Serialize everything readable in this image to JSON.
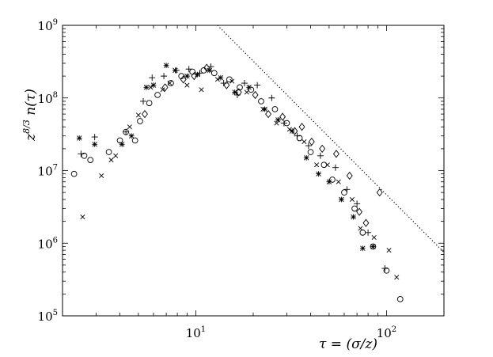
{
  "chart_data": {
    "type": "scatter",
    "title": "",
    "xlabel": "τ = (σ/z)",
    "ylabel": "z^{8/3} n(τ)",
    "x_scale": "log",
    "y_scale": "log",
    "xlim": [
      2.0,
      200
    ],
    "ylim": [
      100000,
      1000000000
    ],
    "grid": false,
    "x_ticks": [
      {
        "value": 10,
        "base": "10",
        "exp": "1"
      },
      {
        "value": 100,
        "base": "10",
        "exp": "2"
      }
    ],
    "y_ticks": [
      {
        "value": 100000,
        "base": "10",
        "exp": "5"
      },
      {
        "value": 1000000,
        "base": "10",
        "exp": "6"
      },
      {
        "value": 10000000,
        "base": "10",
        "exp": "7"
      },
      {
        "value": 100000000,
        "base": "10",
        "exp": "8"
      },
      {
        "value": 1000000000,
        "base": "10",
        "exp": "9"
      }
    ],
    "reference_line": {
      "style": "dotted",
      "points": [
        [
          13,
          1000000000
        ],
        [
          200,
          750000
        ]
      ]
    },
    "series": [
      {
        "marker": "circle",
        "points": [
          [
            2.3,
            9000000.0
          ],
          [
            2.6,
            16000000.0
          ],
          [
            2.8,
            14000000.0
          ],
          [
            3.5,
            18000000.0
          ],
          [
            4.0,
            26000000.0
          ],
          [
            4.3,
            34000000.0
          ],
          [
            4.8,
            26000000.0
          ],
          [
            5.1,
            48000000.0
          ],
          [
            5.7,
            85000000.0
          ],
          [
            6.3,
            110000000.0
          ],
          [
            7.4,
            160000000.0
          ],
          [
            8.4,
            200000000.0
          ],
          [
            9.6,
            230000000.0
          ],
          [
            11.0,
            240000000.0
          ],
          [
            12.5,
            220000000.0
          ],
          [
            15.0,
            180000000.0
          ],
          [
            17.0,
            140000000.0
          ],
          [
            19.5,
            130000000.0
          ],
          [
            22.0,
            90000000.0
          ],
          [
            26.0,
            70000000.0
          ],
          [
            30.0,
            45000000.0
          ],
          [
            35.0,
            28000000.0
          ],
          [
            40.0,
            18000000.0
          ],
          [
            47.0,
            12000000.0
          ],
          [
            52.0,
            7500000.0
          ],
          [
            60.0,
            5000000.0
          ],
          [
            68.0,
            3000000.0
          ],
          [
            75.0,
            1400000.0
          ],
          [
            85.0,
            900000.0
          ],
          [
            100.0,
            420000.0
          ],
          [
            118.0,
            170000.0
          ]
        ]
      },
      {
        "marker": "asterisk",
        "points": [
          [
            2.45,
            28000000.0
          ],
          [
            2.95,
            23000000.0
          ],
          [
            4.1,
            23000000.0
          ],
          [
            4.6,
            30000000.0
          ],
          [
            5.5,
            140000000.0
          ],
          [
            6.0,
            150000000.0
          ],
          [
            7.0,
            280000000.0
          ],
          [
            7.8,
            240000000.0
          ],
          [
            9.0,
            200000000.0
          ],
          [
            10.2,
            210000000.0
          ],
          [
            11.8,
            240000000.0
          ],
          [
            13.5,
            190000000.0
          ],
          [
            16.0,
            120000000.0
          ],
          [
            19.0,
            140000000.0
          ],
          [
            23.0,
            70000000.0
          ],
          [
            27.0,
            50000000.0
          ],
          [
            32.0,
            35000000.0
          ],
          [
            38.0,
            15000000.0
          ],
          [
            44.0,
            9000000.0
          ],
          [
            50.0,
            7000000.0
          ],
          [
            58.0,
            4000000.0
          ],
          [
            67.0,
            2300000.0
          ],
          [
            75.0,
            850000.0
          ],
          [
            85.0,
            900000.0
          ]
        ]
      },
      {
        "marker": "plus",
        "points": [
          [
            2.5,
            17000000.0
          ],
          [
            2.95,
            29000000.0
          ],
          [
            4.3,
            34000000.0
          ],
          [
            5.3,
            90000000.0
          ],
          [
            5.9,
            190000000.0
          ],
          [
            6.8,
            200000000.0
          ],
          [
            7.9,
            240000000.0
          ],
          [
            9.2,
            250000000.0
          ],
          [
            10.5,
            220000000.0
          ],
          [
            12.0,
            270000000.0
          ],
          [
            14.0,
            160000000.0
          ],
          [
            16.5,
            110000000.0
          ],
          [
            18.0,
            160000000.0
          ],
          [
            21.0,
            150000000.0
          ],
          [
            25.0,
            100000000.0
          ],
          [
            29.0,
            45000000.0
          ],
          [
            34.0,
            30000000.0
          ],
          [
            39.0,
            22000000.0
          ],
          [
            45.0,
            16000000.0
          ],
          [
            54.0,
            11000000.0
          ],
          [
            62.0,
            5500000.0
          ],
          [
            70.0,
            3500000.0
          ],
          [
            80.0,
            1400000.0
          ],
          [
            98.0,
            450000.0
          ]
        ]
      },
      {
        "marker": "x",
        "points": [
          [
            2.55,
            2300000.0
          ],
          [
            3.2,
            8500000.0
          ],
          [
            3.6,
            14000000.0
          ],
          [
            3.8,
            16000000.0
          ],
          [
            4.5,
            40000000.0
          ],
          [
            5.0,
            58000000.0
          ],
          [
            5.8,
            140000000.0
          ],
          [
            6.7,
            130000000.0
          ],
          [
            7.3,
            160000000.0
          ],
          [
            9.0,
            150000000.0
          ],
          [
            10.7,
            130000000.0
          ],
          [
            13.0,
            180000000.0
          ],
          [
            15.5,
            170000000.0
          ],
          [
            18.5,
            120000000.0
          ],
          [
            22.5,
            70000000.0
          ],
          [
            26.5,
            45000000.0
          ],
          [
            31.0,
            37000000.0
          ],
          [
            37.0,
            25000000.0
          ],
          [
            43.0,
            12000000.0
          ],
          [
            49.0,
            12000000.0
          ],
          [
            56.0,
            7000000.0
          ],
          [
            66.0,
            4000000.0
          ],
          [
            73.0,
            1600000.0
          ],
          [
            86.0,
            1200000.0
          ],
          [
            103.0,
            800000.0
          ],
          [
            113.0,
            340000.0
          ]
        ]
      },
      {
        "marker": "diamond",
        "points": [
          [
            5.4,
            60000000.0
          ],
          [
            6.9,
            140000000.0
          ],
          [
            8.6,
            180000000.0
          ],
          [
            9.8,
            200000000.0
          ],
          [
            11.4,
            260000000.0
          ],
          [
            14.5,
            150000000.0
          ],
          [
            16.8,
            120000000.0
          ],
          [
            20.5,
            110000000.0
          ],
          [
            24.0,
            60000000.0
          ],
          [
            28.5,
            55000000.0
          ],
          [
            33.0,
            35000000.0
          ],
          [
            36.0,
            40000000.0
          ],
          [
            40.5,
            25000000.0
          ],
          [
            46.0,
            20000000.0
          ],
          [
            54.5,
            17000000.0
          ],
          [
            64.0,
            8500000.0
          ],
          [
            72.0,
            2700000.0
          ],
          [
            78.0,
            1900000.0
          ],
          [
            92.0,
            5000000.0
          ]
        ]
      }
    ]
  }
}
